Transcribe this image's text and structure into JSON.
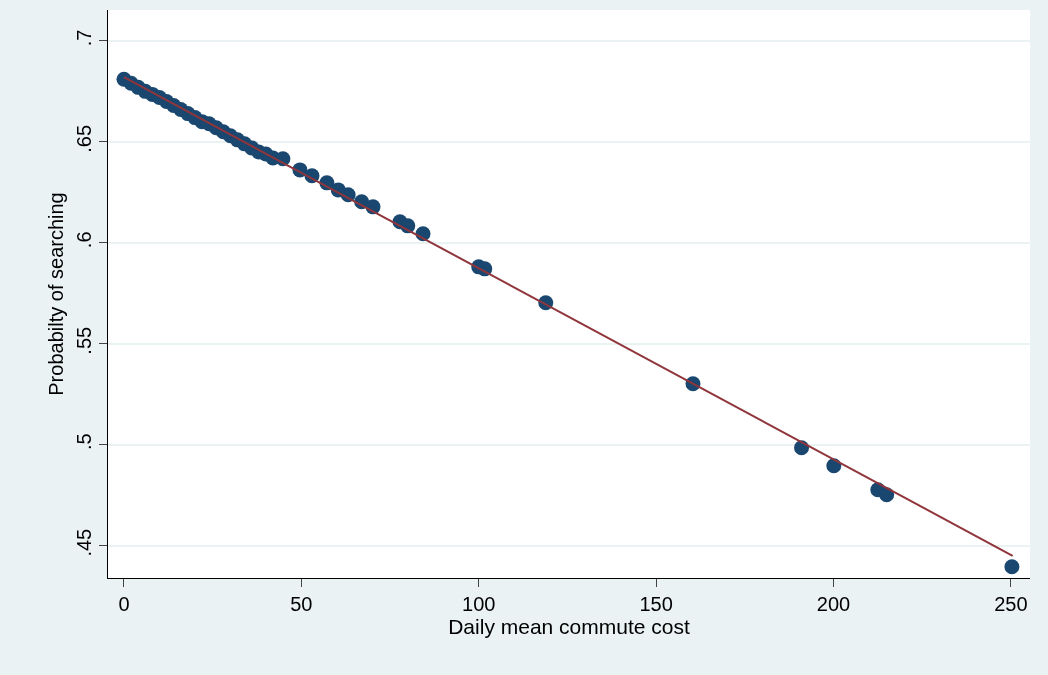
{
  "chart_data": {
    "type": "scatter",
    "xlabel": "Daily mean commute cost",
    "ylabel": "Probabilty of searching",
    "xlim": [
      -4.5,
      255.4
    ],
    "xticks": [
      0,
      50,
      100,
      150,
      200,
      250
    ],
    "ylim": [
      0.434,
      0.7153
    ],
    "yticks": [
      {
        "value": 0.45,
        "label": ".45"
      },
      {
        "value": 0.5,
        "label": ".5"
      },
      {
        "value": 0.55,
        "label": ".55"
      },
      {
        "value": 0.6,
        "label": ".6"
      },
      {
        "value": 0.65,
        "label": ".65"
      },
      {
        "value": 0.7,
        "label": ".7"
      }
    ],
    "grid": "y",
    "marker": "circle",
    "series": [
      {
        "color": "#1a476f",
        "x": [
          0,
          2,
          4,
          6,
          8,
          10,
          12,
          14,
          16,
          18,
          20,
          22,
          24,
          26,
          28,
          30,
          32,
          34,
          36,
          38,
          40,
          42,
          44.8,
          49.6,
          53,
          57.2,
          60.4,
          63.2,
          67,
          70.2,
          77.8,
          80,
          84.3,
          100,
          101.7,
          118.9,
          160.4,
          191,
          200.1,
          212.5,
          215,
          250.3
        ],
        "values": [
          0.681,
          0.679,
          0.677,
          0.675,
          0.6735,
          0.672,
          0.67,
          0.668,
          0.666,
          0.664,
          0.662,
          0.66,
          0.659,
          0.657,
          0.655,
          0.653,
          0.651,
          0.649,
          0.647,
          0.645,
          0.644,
          0.642,
          0.6416,
          0.6361,
          0.6332,
          0.6297,
          0.6262,
          0.6238,
          0.6203,
          0.6178,
          0.6104,
          0.6084,
          0.6045,
          0.5881,
          0.5871,
          0.5703,
          0.5302,
          0.4985,
          0.4896,
          0.4777,
          0.4752,
          0.4396
        ]
      },
      {
        "type": "line",
        "color": "#90353b",
        "marker": "none",
        "x": [
          0,
          250.5
        ],
        "values": [
          0.682,
          0.445
        ]
      }
    ]
  }
}
